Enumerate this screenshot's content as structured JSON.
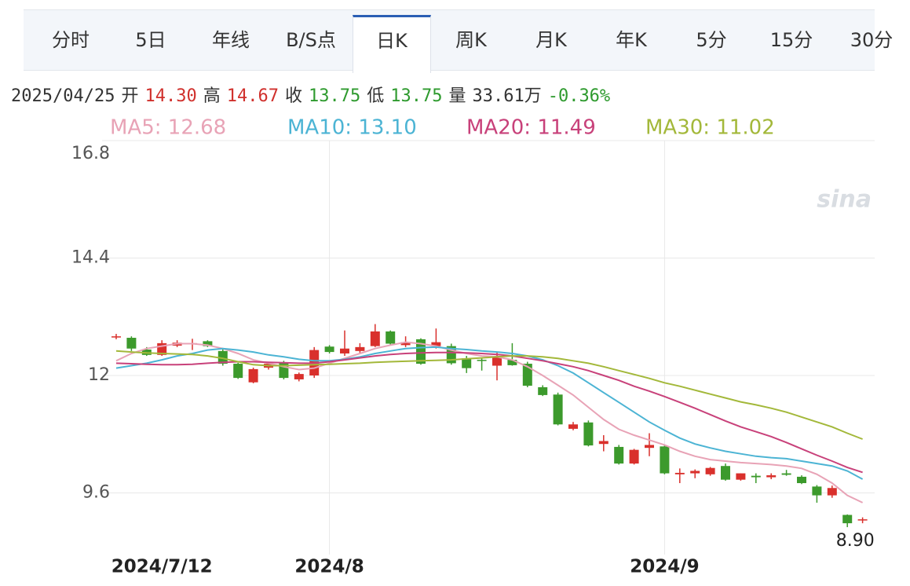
{
  "tabs": [
    "分时",
    "5日",
    "年线",
    "B/S点",
    "日K",
    "周K",
    "月K",
    "年K",
    "5分",
    "15分",
    "30分"
  ],
  "active_tab": 4,
  "quote": [
    {
      "text": "2025/04/25",
      "color": "#333333"
    },
    {
      "text": "开",
      "color": "#333333"
    },
    {
      "text": "14.30",
      "color": "#d0302c"
    },
    {
      "text": "高",
      "color": "#333333"
    },
    {
      "text": "14.67",
      "color": "#d0302c"
    },
    {
      "text": "收",
      "color": "#333333"
    },
    {
      "text": "13.75",
      "color": "#2e9a2e"
    },
    {
      "text": "低",
      "color": "#333333"
    },
    {
      "text": "13.75",
      "color": "#2e9a2e"
    },
    {
      "text": "量",
      "color": "#333333"
    },
    {
      "text": "33.61万",
      "color": "#333333"
    },
    {
      "text": "-0.36%",
      "color": "#2e9a2e"
    }
  ],
  "chart_data": {
    "type": "candlestick",
    "watermark": "sina",
    "categories": [
      null,
      null,
      null,
      "2024/7/12",
      null,
      null,
      null,
      null,
      null,
      null,
      null,
      null,
      null,
      null,
      "2024/8",
      null,
      null,
      null,
      null,
      null,
      null,
      null,
      null,
      null,
      null,
      null,
      null,
      null,
      null,
      null,
      null,
      null,
      null,
      null,
      null,
      null,
      "2024/9",
      null,
      null,
      null,
      null,
      null,
      null,
      null,
      null,
      null,
      null,
      null,
      null,
      null
    ],
    "open": [
      12.78,
      12.77,
      12.53,
      12.42,
      12.61,
      12.64,
      12.7,
      12.5,
      12.24,
      11.86,
      12.16,
      12.27,
      11.92,
      12.0,
      12.59,
      12.45,
      12.5,
      12.6,
      12.9,
      12.62,
      12.74,
      12.6,
      12.6,
      12.35,
      12.32,
      12.2,
      12.32,
      12.24,
      11.76,
      11.61,
      10.91,
      11.04,
      10.6,
      10.54,
      10.2,
      10.52,
      10.55,
      9.98,
      10.0,
      9.98,
      10.15,
      9.87,
      9.95,
      9.92,
      10.0,
      9.93,
      9.73,
      9.55,
      9.15,
      9.05
    ],
    "high": [
      12.85,
      12.8,
      12.58,
      12.72,
      12.72,
      12.75,
      12.72,
      12.55,
      12.26,
      12.16,
      12.28,
      12.3,
      12.06,
      12.58,
      12.62,
      12.92,
      12.66,
      13.05,
      12.92,
      12.8,
      12.76,
      12.96,
      12.65,
      12.4,
      12.35,
      12.48,
      12.66,
      12.28,
      11.8,
      11.65,
      11.05,
      11.08,
      10.78,
      10.58,
      10.5,
      10.82,
      10.58,
      10.1,
      10.08,
      10.13,
      10.2,
      10.0,
      10.0,
      10.0,
      10.07,
      9.96,
      9.76,
      9.75,
      9.16,
      9.1
    ],
    "low": [
      12.74,
      12.5,
      12.4,
      12.4,
      12.58,
      12.52,
      12.58,
      12.2,
      11.93,
      11.84,
      12.12,
      11.92,
      11.88,
      11.95,
      12.45,
      12.4,
      12.45,
      12.58,
      12.63,
      12.58,
      12.22,
      12.55,
      12.22,
      12.05,
      12.1,
      11.9,
      12.2,
      11.76,
      11.58,
      10.98,
      10.88,
      10.55,
      10.45,
      10.18,
      10.18,
      10.35,
      9.98,
      9.8,
      9.9,
      9.95,
      9.85,
      9.85,
      9.8,
      9.88,
      9.95,
      9.78,
      9.4,
      9.5,
      8.9,
      8.98
    ],
    "close": [
      12.8,
      12.55,
      12.42,
      12.66,
      12.67,
      12.66,
      12.6,
      12.24,
      11.95,
      12.13,
      12.24,
      11.95,
      12.03,
      12.52,
      12.48,
      12.55,
      12.58,
      12.9,
      12.65,
      12.68,
      12.24,
      12.68,
      12.25,
      12.15,
      12.3,
      12.4,
      12.21,
      11.79,
      11.6,
      11.0,
      11.0,
      10.57,
      10.66,
      10.2,
      10.48,
      10.58,
      10.0,
      10.01,
      10.05,
      10.11,
      9.87,
      10.0,
      9.92,
      9.96,
      9.97,
      9.8,
      9.55,
      9.7,
      8.98,
      9.06
    ],
    "up_color": "#d9302c",
    "down_color": "#3c9a2c",
    "series": [
      {
        "name": "MA5: 12.68",
        "color": "#e8a3b6",
        "values": [
          12.3,
          12.45,
          12.55,
          12.6,
          12.65,
          12.65,
          12.62,
          12.55,
          12.45,
          12.32,
          12.25,
          12.18,
          12.12,
          12.15,
          12.25,
          12.35,
          12.45,
          12.55,
          12.62,
          12.68,
          12.65,
          12.6,
          12.52,
          12.45,
          12.4,
          12.38,
          12.32,
          12.18,
          12.0,
          11.8,
          11.6,
          11.35,
          11.1,
          10.9,
          10.78,
          10.68,
          10.58,
          10.45,
          10.35,
          10.28,
          10.25,
          10.22,
          10.2,
          10.18,
          10.15,
          10.1,
          9.98,
          9.8,
          9.55,
          9.4
        ]
      },
      {
        "name": "MA10: 13.10",
        "color": "#4cb4d4",
        "values": [
          12.15,
          12.2,
          12.25,
          12.32,
          12.4,
          12.45,
          12.52,
          12.55,
          12.52,
          12.48,
          12.42,
          12.38,
          12.33,
          12.3,
          12.3,
          12.33,
          12.38,
          12.45,
          12.5,
          12.55,
          12.57,
          12.58,
          12.55,
          12.53,
          12.5,
          12.48,
          12.45,
          12.4,
          12.32,
          12.2,
          12.05,
          11.85,
          11.65,
          11.45,
          11.25,
          11.05,
          10.88,
          10.72,
          10.6,
          10.52,
          10.45,
          10.4,
          10.35,
          10.32,
          10.3,
          10.25,
          10.2,
          10.15,
          10.05,
          9.88
        ]
      },
      {
        "name": "MA20: 11.49",
        "color": "#c8417a",
        "values": [
          12.25,
          12.24,
          12.23,
          12.22,
          12.22,
          12.23,
          12.25,
          12.27,
          12.28,
          12.28,
          12.27,
          12.26,
          12.25,
          12.25,
          12.28,
          12.32,
          12.36,
          12.4,
          12.43,
          12.45,
          12.46,
          12.47,
          12.47,
          12.46,
          12.45,
          12.43,
          12.4,
          12.35,
          12.3,
          12.24,
          12.18,
          12.1,
          12.0,
          11.9,
          11.78,
          11.68,
          11.57,
          11.45,
          11.33,
          11.2,
          11.07,
          10.95,
          10.85,
          10.75,
          10.63,
          10.5,
          10.37,
          10.25,
          10.12,
          10.02
        ]
      },
      {
        "name": "MA30: 11.02",
        "color": "#a3b83a",
        "values": [
          12.5,
          12.48,
          12.46,
          12.45,
          12.44,
          12.43,
          12.4,
          12.35,
          12.28,
          12.22,
          12.2,
          12.2,
          12.21,
          12.22,
          12.23,
          12.24,
          12.25,
          12.27,
          12.28,
          12.29,
          12.3,
          12.31,
          12.32,
          12.34,
          12.36,
          12.38,
          12.4,
          12.4,
          12.38,
          12.35,
          12.3,
          12.25,
          12.18,
          12.1,
          12.02,
          11.94,
          11.85,
          11.78,
          11.7,
          11.62,
          11.54,
          11.46,
          11.4,
          11.33,
          11.25,
          11.15,
          11.05,
          10.95,
          10.82,
          10.7
        ]
      }
    ],
    "ylim": [
      8.5,
      16.8
    ],
    "yticks": [
      9.6,
      12,
      14.4,
      16.8
    ],
    "grid": true,
    "annotations": [
      {
        "value": 8.9,
        "label": "8.90"
      }
    ]
  }
}
